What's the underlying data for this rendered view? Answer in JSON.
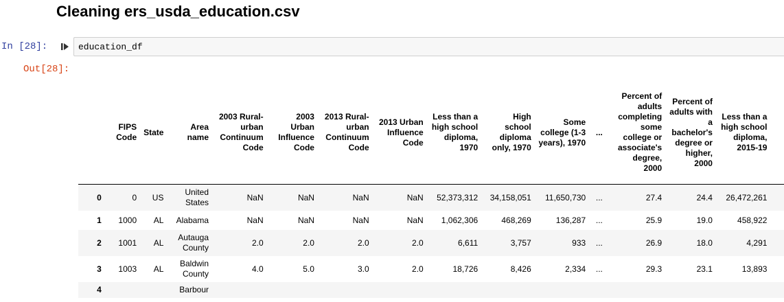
{
  "notebook": {
    "heading": "Cleaning ers_usda_education.csv",
    "in_prompt": "In [28]:",
    "out_prompt": "Out[28]:",
    "code": "education_df"
  },
  "table": {
    "columns": [
      "",
      "FIPS Code",
      "State",
      "Area name",
      "2003 Rural-urban Continuum Code",
      "2003 Urban Influence Code",
      "2013 Rural-urban Continuum Code",
      "2013 Urban Influence Code",
      "Less than a high school diploma, 1970",
      "High school diploma only, 1970",
      "Some college (1-3 years), 1970",
      "...",
      "Percent of adults completing some college or associate's degree, 2000",
      "Percent of adults with a bachelor's degree or higher, 2000",
      "Less than a high school diploma, 2015-19"
    ],
    "rows": [
      [
        "0",
        "0",
        "US",
        "United States",
        "NaN",
        "NaN",
        "NaN",
        "NaN",
        "52,373,312",
        "34,158,051",
        "11,650,730",
        "...",
        "27.4",
        "24.4",
        "26,472,261"
      ],
      [
        "1",
        "1000",
        "AL",
        "Alabama",
        "NaN",
        "NaN",
        "NaN",
        "NaN",
        "1,062,306",
        "468,269",
        "136,287",
        "...",
        "25.9",
        "19.0",
        "458,922"
      ],
      [
        "2",
        "1001",
        "AL",
        "Autauga County",
        "2.0",
        "2.0",
        "2.0",
        "2.0",
        "6,611",
        "3,757",
        "933",
        "...",
        "26.9",
        "18.0",
        "4,291"
      ],
      [
        "3",
        "1003",
        "AL",
        "Baldwin County",
        "4.0",
        "5.0",
        "3.0",
        "2.0",
        "18,726",
        "8,426",
        "2,334",
        "...",
        "29.3",
        "23.1",
        "13,893"
      ],
      [
        "4",
        "",
        "",
        "Barbour",
        "",
        "",
        "",
        "",
        "",
        "",
        "",
        "",
        "",
        "",
        ""
      ]
    ]
  }
}
